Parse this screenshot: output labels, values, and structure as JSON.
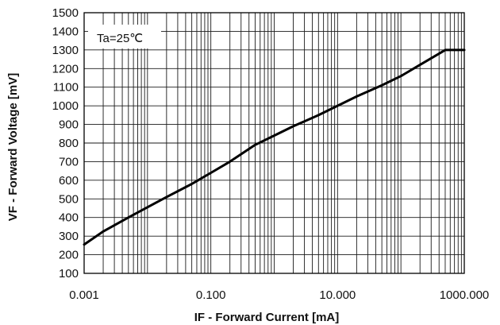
{
  "chart_data": {
    "type": "line",
    "title": "",
    "xlabel": "IF - Forward Current [mA]",
    "ylabel": "VF - Forward Voltage [mV]",
    "x_scale": "log",
    "xlim": [
      0.001,
      1000
    ],
    "ylim": [
      100,
      1500
    ],
    "x_tick_values": [
      0.001,
      0.1,
      10,
      1000
    ],
    "x_tick_labels": [
      "0.001",
      "0.100",
      "10.000",
      "1000.000"
    ],
    "y_ticks": [
      100,
      200,
      300,
      400,
      500,
      600,
      700,
      800,
      900,
      1000,
      1100,
      1200,
      1300,
      1400,
      1500
    ],
    "grid": true,
    "annotation": "Ta=25℃",
    "series": [
      {
        "color": "#000000",
        "x": [
          0.001,
          0.002,
          0.005,
          0.01,
          0.02,
          0.05,
          0.1,
          0.2,
          0.5,
          1,
          2,
          5,
          10,
          20,
          50,
          100,
          200,
          500,
          1000
        ],
        "y": [
          255,
          325,
          400,
          455,
          510,
          580,
          640,
          700,
          790,
          840,
          890,
          950,
          1000,
          1050,
          1110,
          1160,
          1220,
          1300,
          1300
        ]
      }
    ]
  }
}
